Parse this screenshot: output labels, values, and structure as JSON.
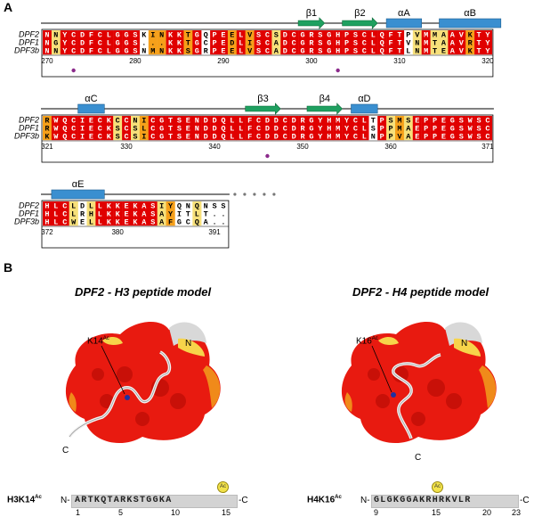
{
  "panelA": {
    "letter": "A",
    "blocks": [
      {
        "labels": [
          "DPF2",
          "DPF1",
          "DPF3b"
        ],
        "rows": [
          "NNYCDFCLGGSKINKKTGQPEELVSCSDCGRSGHPSCLQFTPVMMAAVKTY",
          "NGYCDFCLGGS...KKTGCPEDLISCADCGRSGHPSCLQFTVNMTAAVRTY",
          "NNYCDFCLGGSNMNKKSGRPEELVSCADCGRSGHPSCLQFTLNMTEAVKTY"
        ],
        "numbers": [
          270,
          280,
          290,
          300,
          310,
          320
        ],
        "ss": [
          {
            "type": "strand",
            "label": "β1",
            "start": 29,
            "end": 32
          },
          {
            "type": "strand",
            "label": "β2",
            "start": 34,
            "end": 38
          },
          {
            "type": "helix",
            "label": "αA",
            "start": 39,
            "end": 43
          },
          {
            "type": "helix",
            "label": "αB",
            "start": 45,
            "end": 52
          }
        ],
        "dots": [
          3,
          33
        ]
      },
      {
        "labels": [
          "DPF2",
          "DPF1",
          "DPF3b"
        ],
        "rows": [
          "RWQCIECKCCNICGTSENDDQLLFCDDCDRGYHMYCLTPSMSEPPEGSWSC",
          "RWQCIECKSCSLCGTSENDDQLLFCDDCDRGYHMYCLSPPMAEPPEGSWSC",
          "KWQCIECKSCSICGTSENDDQLLFCDDCDRGYHMYCLNPPVAEPPEGSWSC"
        ],
        "numbers": [
          321,
          330,
          340,
          350,
          360,
          371
        ],
        "ss": [
          {
            "type": "helix",
            "label": "αC",
            "start": 4,
            "end": 7
          },
          {
            "type": "strand",
            "label": "β3",
            "start": 23,
            "end": 27
          },
          {
            "type": "strand",
            "label": "β4",
            "start": 30,
            "end": 34
          },
          {
            "type": "helix",
            "label": "αD",
            "start": 35,
            "end": 38
          }
        ],
        "dots": [
          25
        ]
      },
      {
        "labels": [
          "DPF2",
          "DPF1",
          "DPF3b"
        ],
        "rows": [
          "HLCLDLLKKEKASIYQNQNSS",
          "HLCLRHLKKEKASAYITLT..",
          "HLCWELLKKEKASAFGCQA.."
        ],
        "numbers": [
          372,
          380,
          391
        ],
        "ss": [
          {
            "type": "helix",
            "label": "αE",
            "start": 1,
            "end": 7
          }
        ],
        "dots": []
      }
    ]
  },
  "panelB": {
    "letter": "B",
    "models": [
      {
        "title": "DPF2 - H3 peptide model",
        "k_label": "K14",
        "k_sup": "Ac",
        "n_label": "N",
        "c_label": "C",
        "peptide_label": "H3K14",
        "peptide_sup": "Ac",
        "n_term": "N-",
        "c_term": "-C",
        "sequence": "ARTKQTARKSTGGKA",
        "ac_badge": "Ac",
        "numbers": [
          "1",
          "5",
          "10",
          "15"
        ]
      },
      {
        "title": "DPF2 - H4 peptide model",
        "k_label": "K16",
        "k_sup": "Ac",
        "n_label": "N",
        "c_label": "C",
        "peptide_label": "H4K16",
        "peptide_sup": "Ac",
        "n_term": "N-",
        "c_term": "-C",
        "sequence": "GLGKGGAKRHRKVLR",
        "ac_badge": "Ac",
        "numbers": [
          "9",
          "15",
          "20",
          "23"
        ]
      }
    ]
  },
  "colors": {
    "conserved": "#e00000",
    "similar": "#f6a01a",
    "weak": "#f7e07a",
    "helix": "#3a8fd0",
    "strand": "#1fa060",
    "dot": "#8b2a8b"
  }
}
